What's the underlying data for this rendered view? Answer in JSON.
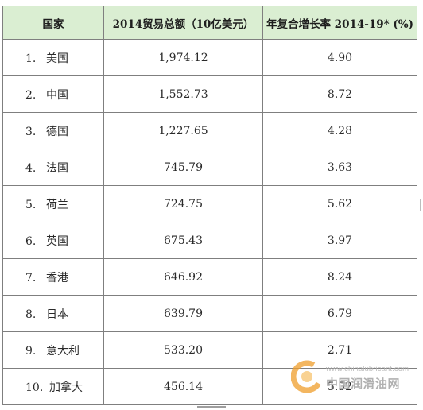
{
  "table": {
    "headers": [
      "国家",
      "2014贸易总额（10亿美元）",
      "年复合增长率 2014-19* (%)"
    ],
    "rows": [
      {
        "rank": "1.",
        "country": "美国",
        "total": "1,974.12",
        "cagr": "4.90"
      },
      {
        "rank": "2.",
        "country": "中国",
        "total": "1,552.73",
        "cagr": "8.72"
      },
      {
        "rank": "3.",
        "country": "德国",
        "total": "1,227.65",
        "cagr": "4.28"
      },
      {
        "rank": "4.",
        "country": "法国",
        "total": "745.79",
        "cagr": "3.63"
      },
      {
        "rank": "5.",
        "country": "荷兰",
        "total": "724.75",
        "cagr": "5.62"
      },
      {
        "rank": "6.",
        "country": "英国",
        "total": "675.43",
        "cagr": "3.97"
      },
      {
        "rank": "7.",
        "country": "香港",
        "total": "646.92",
        "cagr": "8.24"
      },
      {
        "rank": "8.",
        "country": "日本",
        "total": "639.79",
        "cagr": "6.79"
      },
      {
        "rank": "9.",
        "country": "意大利",
        "total": "533.20",
        "cagr": "2.71"
      },
      {
        "rank": "10.",
        "country": "加拿大",
        "total": "456.14",
        "cagr": "5.52"
      }
    ]
  },
  "watermark": {
    "url": "www.chinalubricant.com",
    "name": "中国润滑油网"
  },
  "colors": {
    "header_bg": "#daeed2",
    "border": "#7f7f7f",
    "logo_orange": "#f0a030"
  },
  "icons": [
    "logo-icon"
  ]
}
